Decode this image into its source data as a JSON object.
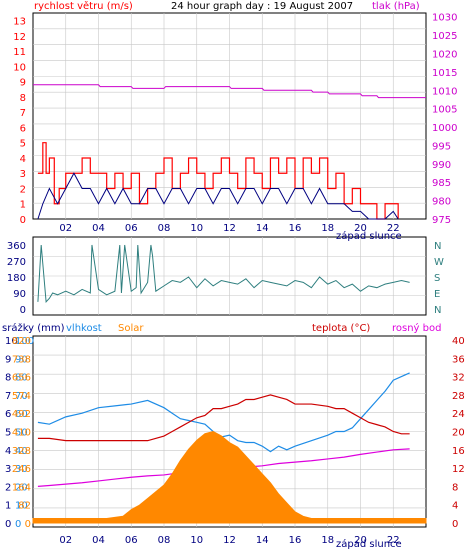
{
  "header": {
    "left_label": "rychlost větru (m/s)",
    "title": "24 hour graph day : 19 August 2007",
    "right_label": "tlak (hPa)"
  },
  "colors": {
    "wind": "#ff0000",
    "wind_avg": "#000080",
    "pressure": "#cc00cc",
    "direction": "#2f7f7f",
    "humidity": "#1e8ce6",
    "temperature": "#cc0000",
    "dewpoint": "#dd00dd",
    "solar": "#ff8800",
    "grid": "#c8c8c8"
  },
  "x_ticks": [
    "02",
    "04",
    "06",
    "08",
    "10",
    "12",
    "14",
    "16",
    "18",
    "20",
    "22"
  ],
  "sunset_label": "západ slunce",
  "chart_data": [
    {
      "type": "line",
      "name": "wind-pressure",
      "y_left_ticks": [
        "0",
        "1",
        "2",
        "3",
        "4",
        "5",
        "6",
        "7",
        "8",
        "9",
        "10",
        "11",
        "12",
        "13"
      ],
      "y_right_ticks": [
        "975",
        "980",
        "985",
        "990",
        "995",
        "1000",
        "1005",
        "1010",
        "1015",
        "1020",
        "1025",
        "1030"
      ],
      "ylim_left": [
        0,
        13.5
      ],
      "ylim_right": [
        975,
        1031
      ],
      "series": [
        {
          "key": "wind_gust",
          "color_key": "wind",
          "x": [
            0.3,
            0.6,
            0.8,
            1,
            1.3,
            1.6,
            2,
            2.5,
            3,
            3.5,
            4,
            4.5,
            5,
            5.5,
            6,
            6.5,
            7,
            7.5,
            8,
            8.5,
            9,
            9.5,
            10,
            10.5,
            11,
            11.5,
            12,
            12.5,
            13,
            13.5,
            14,
            14.5,
            15,
            15.5,
            16,
            16.5,
            17,
            17.5,
            18,
            18.5,
            19,
            19.5,
            20,
            20.5,
            21,
            21.5,
            22,
            22.3
          ],
          "y": [
            3,
            5,
            3,
            4,
            1,
            2,
            3,
            3,
            4,
            3,
            3,
            2,
            3,
            2,
            3,
            1,
            2,
            3,
            4,
            2,
            3,
            4,
            3,
            2,
            3,
            4,
            3,
            2,
            4,
            3,
            2,
            4,
            3,
            4,
            2,
            4,
            3,
            4,
            2,
            3,
            1,
            2,
            1,
            1,
            0,
            1,
            1,
            0
          ]
        },
        {
          "key": "wind_avg",
          "color_key": "wind_avg",
          "x": [
            0.3,
            0.6,
            1,
            1.5,
            2,
            2.5,
            3,
            3.5,
            4,
            4.5,
            5,
            5.5,
            6,
            6.5,
            7,
            7.5,
            8,
            8.5,
            9,
            9.5,
            10,
            10.5,
            11,
            11.5,
            12,
            12.5,
            13,
            13.5,
            14,
            14.5,
            15,
            15.5,
            16,
            16.5,
            17,
            17.5,
            18,
            18.5,
            19,
            19.5,
            20,
            20.5,
            21,
            21.5,
            22,
            22.3
          ],
          "y": [
            0,
            1,
            2,
            1,
            2,
            3,
            2,
            2,
            1,
            2,
            1,
            2,
            1,
            1,
            2,
            2,
            1,
            2,
            2,
            1,
            2,
            2,
            1,
            2,
            2,
            1,
            2,
            2,
            1,
            2,
            2,
            1,
            2,
            2,
            1,
            2,
            1,
            1,
            1,
            0.5,
            0.5,
            0,
            0,
            0,
            0.5,
            0
          ]
        },
        {
          "key": "pressure",
          "color_key": "pressure",
          "x": [
            0,
            4,
            4.1,
            6,
            6.1,
            8,
            8.1,
            12,
            12.1,
            14,
            14.1,
            17,
            17.1,
            18,
            18.1,
            20,
            20.1,
            21,
            21.1,
            24
          ],
          "y": [
            1011.5,
            1011.5,
            1011,
            1011,
            1010.5,
            1010.5,
            1011,
            1011,
            1010.5,
            1010.5,
            1010,
            1010,
            1009.5,
            1009.5,
            1009,
            1009,
            1008.5,
            1008.5,
            1008,
            1008
          ]
        }
      ]
    },
    {
      "type": "line",
      "name": "wind-direction",
      "y_left_ticks": [
        "360",
        "270",
        "180",
        "90",
        "0"
      ],
      "y_right_ticks": [
        "N",
        "W",
        "S",
        "E",
        "N"
      ],
      "ylim": [
        0,
        360
      ],
      "series": [
        {
          "key": "direction",
          "color_key": "direction",
          "x": [
            0.3,
            0.5,
            0.8,
            1,
            1.2,
            1.5,
            2,
            2.5,
            3,
            3.5,
            3.6,
            4,
            4.5,
            5,
            5.3,
            5.4,
            5.6,
            6,
            6.3,
            6.4,
            6.6,
            7,
            7.2,
            7.3,
            7.5,
            8,
            8.5,
            9,
            9.5,
            10,
            10.5,
            11,
            11.5,
            12,
            12.5,
            13,
            13.5,
            14,
            14.5,
            15,
            15.5,
            16,
            16.5,
            17,
            17.5,
            18,
            18.5,
            19,
            19.5,
            20,
            20.5,
            21,
            21.5,
            22,
            22.5,
            23
          ],
          "y": [
            40,
            360,
            40,
            60,
            90,
            80,
            100,
            80,
            110,
            90,
            360,
            110,
            80,
            100,
            360,
            90,
            360,
            100,
            120,
            360,
            90,
            150,
            360,
            300,
            100,
            130,
            160,
            150,
            180,
            120,
            170,
            130,
            160,
            150,
            140,
            170,
            120,
            160,
            150,
            140,
            130,
            160,
            150,
            120,
            180,
            140,
            160,
            120,
            140,
            100,
            130,
            120,
            140,
            150,
            160,
            150
          ]
        }
      ]
    },
    {
      "type": "line",
      "name": "weather",
      "labels": {
        "rain": "srážky (mm)",
        "humidity": "vlhkost",
        "solar": "Solar",
        "temperature": "teplota (°C)",
        "dewpoint": "rosný bod"
      },
      "y_rain_ticks": [
        "0",
        "1",
        "2",
        "3",
        "4",
        "5",
        "6",
        "7",
        "8",
        "9",
        "10"
      ],
      "y_humidity_ticks": [
        "0",
        "10",
        "20",
        "30",
        "40",
        "50",
        "60",
        "70",
        "80",
        "90",
        "100"
      ],
      "y_solar_ticks": [
        "0",
        "82",
        "164",
        "246",
        "328",
        "410",
        "492",
        "574",
        "656",
        "738",
        "820"
      ],
      "y_temp_ticks": [
        "0",
        "4",
        "8",
        "12",
        "16",
        "20",
        "24",
        "28",
        "32",
        "36",
        "40"
      ],
      "ylim_temp": [
        0,
        40
      ],
      "series": [
        {
          "key": "humidity",
          "color_key": "humidity",
          "unit": "%",
          "x": [
            0.3,
            1,
            2,
            3,
            4,
            5,
            6,
            7,
            8,
            8.5,
            9,
            9.5,
            10,
            10.5,
            11,
            11.5,
            12,
            12.5,
            13,
            13.5,
            14,
            14.5,
            15,
            15.5,
            16,
            17,
            18,
            18.5,
            19,
            19.5,
            20,
            20.5,
            21,
            21.5,
            22,
            22.5,
            23
          ],
          "y": [
            55,
            54,
            58,
            60,
            63,
            64,
            65,
            67,
            63,
            60,
            57,
            56,
            55,
            54,
            50,
            47,
            48,
            45,
            44,
            44,
            42,
            39,
            42,
            40,
            42,
            45,
            48,
            50,
            50,
            52,
            57,
            62,
            67,
            72,
            78,
            80,
            82
          ]
        },
        {
          "key": "temperature",
          "color_key": "temperature",
          "unit": "°C",
          "x": [
            0.3,
            1,
            2,
            3,
            4,
            5,
            6,
            7,
            8,
            8.5,
            9,
            9.5,
            10,
            10.5,
            11,
            11.5,
            12,
            12.5,
            13,
            13.5,
            14,
            14.5,
            15,
            15.5,
            16,
            17,
            18,
            18.5,
            19,
            19.5,
            20,
            20.5,
            21,
            21.5,
            22,
            22.5,
            23
          ],
          "y": [
            18.5,
            18.5,
            18,
            18,
            18,
            18,
            18,
            18,
            19,
            20,
            21,
            22,
            23,
            23.5,
            25,
            25,
            25.5,
            26,
            27,
            27,
            27.5,
            28,
            27.5,
            27,
            26,
            26,
            25.5,
            25,
            25,
            24,
            23,
            22,
            21.5,
            21,
            20,
            19.5,
            19.5
          ]
        },
        {
          "key": "dewpoint",
          "color_key": "dewpoint",
          "unit": "°C",
          "x": [
            0.3,
            1,
            2,
            3,
            4,
            5,
            6,
            7,
            8,
            9,
            10,
            11,
            12,
            13,
            14,
            15,
            16,
            17,
            18,
            19,
            20,
            21,
            22,
            23
          ],
          "y": [
            8,
            8.2,
            8.5,
            8.8,
            9.2,
            9.6,
            10,
            10.3,
            10.5,
            11,
            11.2,
            11.5,
            12,
            12.2,
            12.5,
            13,
            13.3,
            13.6,
            14,
            14.4,
            15,
            15.5,
            16,
            16.2
          ]
        },
        {
          "key": "solar",
          "color_key": "solar",
          "unit": "W/m2",
          "x": [
            0,
            4.5,
            5,
            5.5,
            6,
            6.5,
            7,
            7.5,
            8,
            8.5,
            9,
            9.5,
            10,
            10.5,
            11,
            11.5,
            12,
            12.5,
            13,
            13.5,
            14,
            14.5,
            15,
            15.5,
            16,
            16.5,
            17,
            24
          ],
          "y": [
            20,
            20,
            25,
            30,
            60,
            80,
            110,
            140,
            170,
            220,
            280,
            330,
            370,
            400,
            410,
            390,
            360,
            340,
            300,
            260,
            220,
            180,
            130,
            90,
            50,
            30,
            20,
            20
          ]
        }
      ]
    }
  ]
}
